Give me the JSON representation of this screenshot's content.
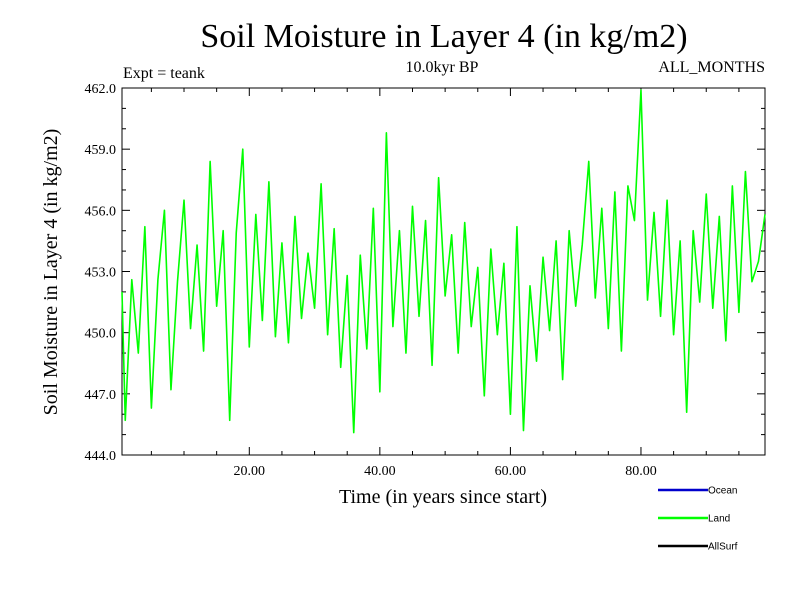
{
  "chart_data": {
    "type": "line",
    "title": "Soil Moisture in Layer 4 (in kg/m2)",
    "subtitle": "10.0kyr BP",
    "left_note": "Expt = teank",
    "right_note": "ALL_MONTHS",
    "xlabel": "Time (in years since start)",
    "ylabel": "Soil Moisture in Layer 4 (in kg/m2)",
    "xlim": [
      0.5,
      99.0
    ],
    "ylim": [
      444.0,
      462.0
    ],
    "x_ticks": [
      20,
      40,
      60,
      80
    ],
    "x_tick_labels": [
      "20.00",
      "40.00",
      "60.00",
      "80.00"
    ],
    "y_ticks": [
      444,
      447,
      450,
      453,
      456,
      459,
      462
    ],
    "y_tick_labels": [
      "444.0",
      "447.0",
      "450.0",
      "453.0",
      "456.0",
      "459.0",
      "462.0"
    ],
    "legend": [
      {
        "name": "Ocean",
        "color": "#0000cc"
      },
      {
        "name": "Land",
        "color": "#00ff00"
      },
      {
        "name": "AllSurf",
        "color": "#000000"
      }
    ],
    "series": [
      {
        "name": "Land",
        "color": "#00ff00",
        "x": [
          0.5,
          1,
          2,
          3,
          4,
          5,
          6,
          7,
          8,
          9,
          10,
          11,
          12,
          13,
          14,
          15,
          16,
          17,
          18,
          19,
          20,
          21,
          22,
          23,
          24,
          25,
          26,
          27,
          28,
          29,
          30,
          31,
          32,
          33,
          34,
          35,
          36,
          37,
          38,
          39,
          40,
          41,
          42,
          43,
          44,
          45,
          46,
          47,
          48,
          49,
          50,
          51,
          52,
          53,
          54,
          55,
          56,
          57,
          58,
          59,
          60,
          61,
          62,
          63,
          64,
          65,
          66,
          67,
          68,
          69,
          70,
          71,
          72,
          73,
          74,
          75,
          76,
          77,
          78,
          79,
          80,
          81,
          82,
          83,
          84,
          85,
          86,
          87,
          88,
          89,
          90,
          91,
          92,
          93,
          94,
          95,
          96,
          97,
          98,
          99
        ],
        "values": [
          452.0,
          445.7,
          452.6,
          449.0,
          455.2,
          446.3,
          452.6,
          456.0,
          447.2,
          452.5,
          456.5,
          450.2,
          454.3,
          449.1,
          458.4,
          451.3,
          455.0,
          445.7,
          454.9,
          459.0,
          449.3,
          455.8,
          450.6,
          457.4,
          449.8,
          454.4,
          449.5,
          455.7,
          450.7,
          453.9,
          451.2,
          457.3,
          449.9,
          455.1,
          448.3,
          452.8,
          445.1,
          453.8,
          449.2,
          456.1,
          447.1,
          459.8,
          450.3,
          455.0,
          449.0,
          456.2,
          450.8,
          455.5,
          448.4,
          457.6,
          451.8,
          454.8,
          449.0,
          455.4,
          450.3,
          453.2,
          446.9,
          454.1,
          449.9,
          453.4,
          446.0,
          455.2,
          445.2,
          452.3,
          448.6,
          453.7,
          450.1,
          454.5,
          447.7,
          455.0,
          451.3,
          454.3,
          458.4,
          451.7,
          456.1,
          450.2,
          456.9,
          449.1,
          457.2,
          455.5,
          461.9,
          451.6,
          455.9,
          450.8,
          456.5,
          449.9,
          454.5,
          446.1,
          455.0,
          451.5,
          456.8,
          451.2,
          455.7,
          449.6,
          457.2,
          451.0,
          457.9,
          452.5,
          453.5,
          455.8
        ]
      }
    ]
  }
}
